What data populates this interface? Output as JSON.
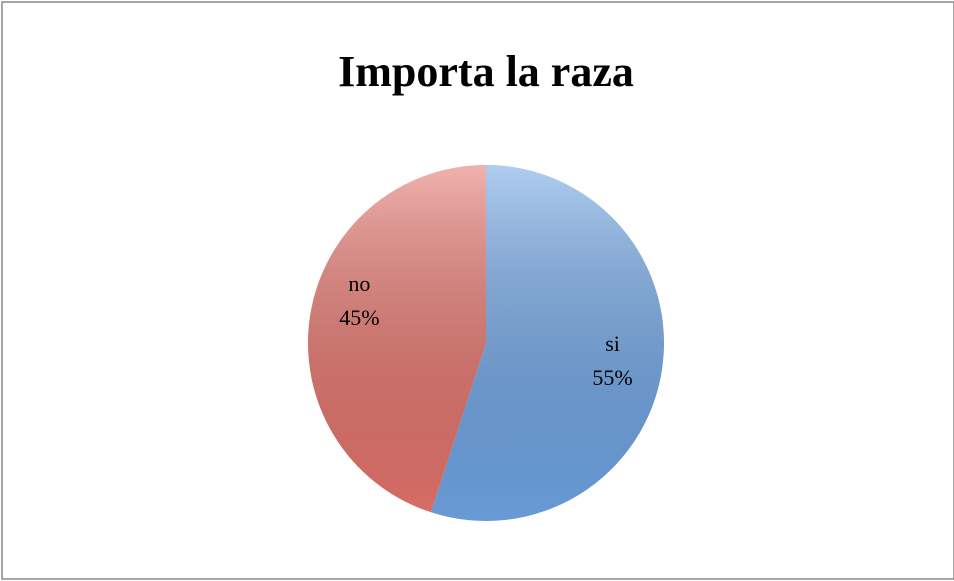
{
  "chart_data": {
    "type": "pie",
    "title": "Importa la raza",
    "categories": [
      "si",
      "no"
    ],
    "values": [
      55,
      45
    ],
    "value_labels": [
      "55%",
      "45%"
    ],
    "colors": [
      "#6fa4e4",
      "#e4736c"
    ]
  }
}
